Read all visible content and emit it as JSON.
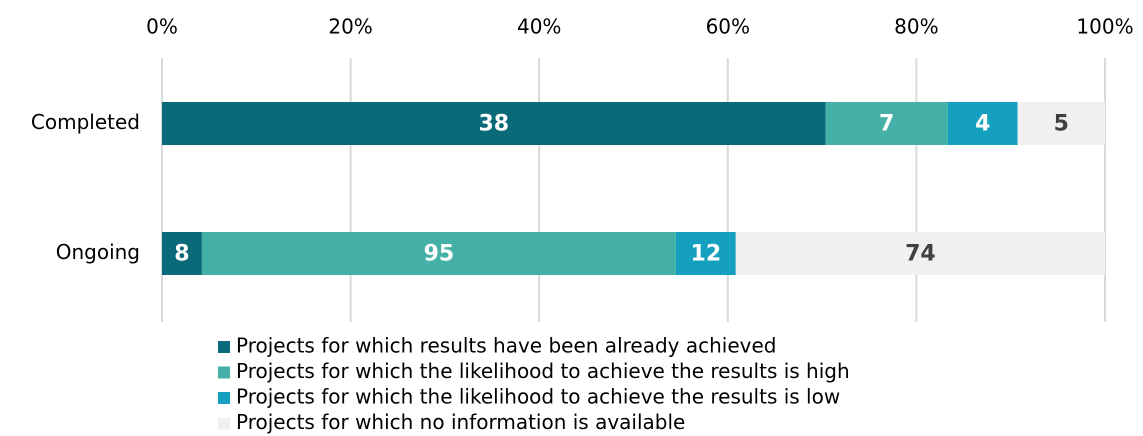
{
  "chart_data": {
    "type": "bar",
    "orientation": "horizontal",
    "stacking": "percent",
    "categories": [
      "Completed",
      "Ongoing"
    ],
    "series": [
      {
        "name": "Projects for which results have been already achieved",
        "color": "#0b6a7a",
        "label_color": "#ffffff",
        "values": [
          38,
          8
        ]
      },
      {
        "name": "Projects for which the likelihood to achieve the results is high",
        "color": "#44b0a8",
        "label_color": "#ffffff",
        "values": [
          7,
          95
        ]
      },
      {
        "name": "Projects for which the likelihood to achieve the results is low",
        "color": "#16a0c0",
        "label_color": "#ffffff",
        "values": [
          4,
          12
        ]
      },
      {
        "name": "Projects for which no information is available",
        "color": "#f0f0f0",
        "label_color": "#404040",
        "values": [
          5,
          74
        ]
      }
    ],
    "xlim": [
      0,
      100
    ],
    "xticks": [
      {
        "value": 0,
        "label": "0%"
      },
      {
        "value": 20,
        "label": "20%"
      },
      {
        "value": 40,
        "label": "40%"
      },
      {
        "value": 60,
        "label": "60%"
      },
      {
        "value": 80,
        "label": "80%"
      },
      {
        "value": 100,
        "label": "100%"
      }
    ],
    "grid": true,
    "legend": "bottom"
  }
}
